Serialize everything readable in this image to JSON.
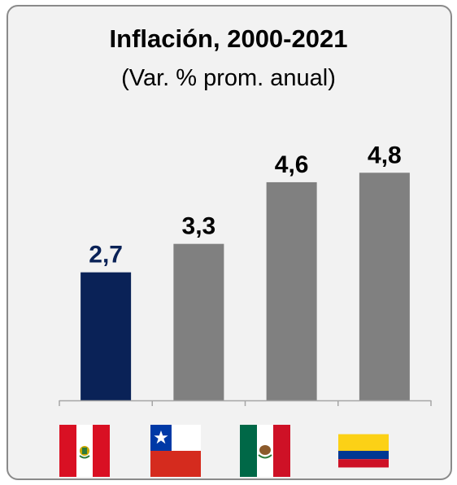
{
  "title": "Inflación, 2000-2021",
  "subtitle": "(Var. % prom. anual)",
  "chart_data": {
    "type": "bar",
    "title": "Inflación, 2000-2021",
    "subtitle": "(Var. % prom. anual)",
    "categories": [
      "Perú",
      "Chile",
      "México",
      "Colombia"
    ],
    "values": [
      2.7,
      3.3,
      4.6,
      4.8
    ],
    "value_labels": [
      "2,7",
      "3,3",
      "4,6",
      "4,8"
    ],
    "bar_colors": [
      "#0a2257",
      "#808080",
      "#808080",
      "#808080"
    ],
    "label_colors": [
      "#0a2257",
      "#000000",
      "#000000",
      "#000000"
    ],
    "xlabel": "",
    "ylabel": "",
    "ylim": [
      0,
      5.8
    ],
    "grid": false,
    "legend": "none",
    "category_markers": [
      "flag-peru-icon",
      "flag-chile-icon",
      "flag-mexico-icon",
      "flag-colombia-icon"
    ]
  },
  "colors": {
    "panel_bg": "#f2f2f2",
    "panel_border": "#8a8a8a",
    "highlight": "#0a2257",
    "bar_default": "#808080"
  }
}
